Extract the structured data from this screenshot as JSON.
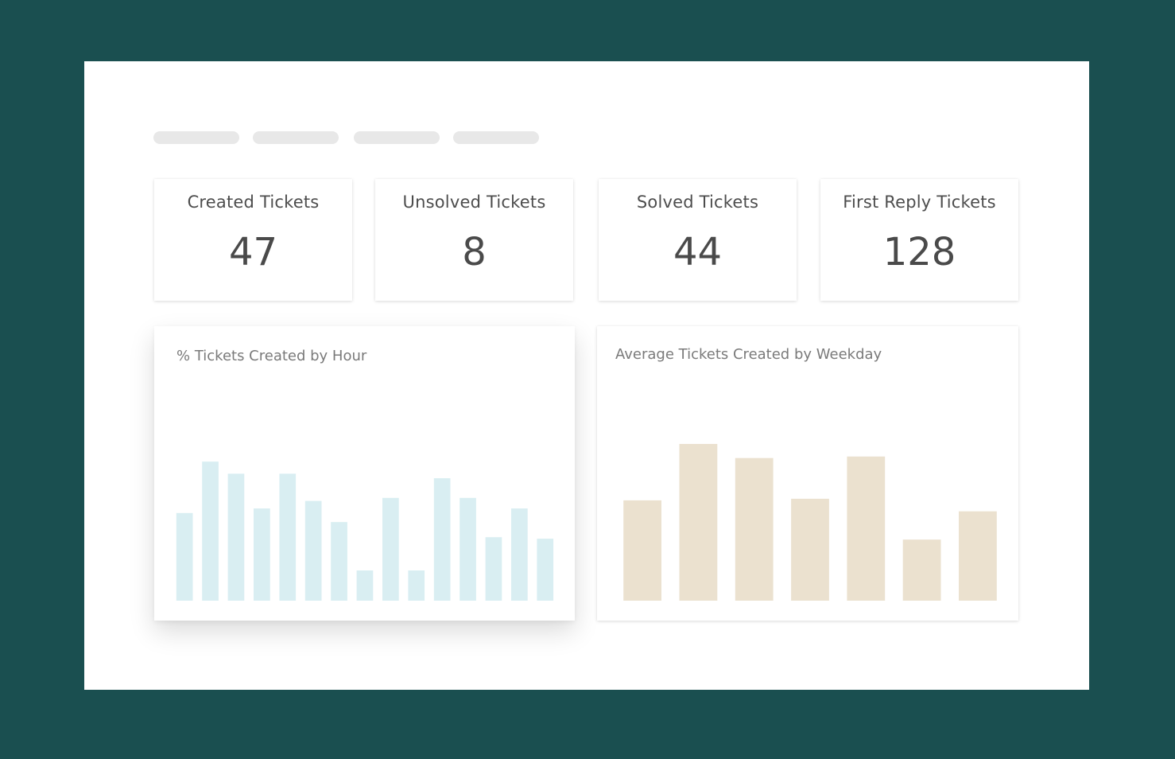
{
  "kpis": [
    {
      "label": "Created Tickets",
      "value": "47"
    },
    {
      "label": "Unsolved Tickets",
      "value": "8"
    },
    {
      "label": "Solved Tickets",
      "value": "44"
    },
    {
      "label": "First Reply Tickets",
      "value": "128"
    }
  ],
  "charts": {
    "hourly": {
      "title": "% Tickets Created by Hour"
    },
    "weekday": {
      "title": "Average Tickets Created by Weekday"
    }
  },
  "colors": {
    "background": "#1a4f50",
    "hourly_bar": "#d9eef2",
    "weekday_bar": "#ebe1cf"
  },
  "chart_data": [
    {
      "type": "bar",
      "title": "% Tickets Created by Hour",
      "values": [
        58,
        92,
        84,
        61,
        84,
        66,
        52,
        20,
        68,
        20,
        81,
        68,
        42,
        61,
        41
      ],
      "ylim": [
        0,
        100
      ],
      "grid": false,
      "legend": "none"
    },
    {
      "type": "bar",
      "title": "Average Tickets Created by Weekday",
      "values": [
        64,
        100,
        91,
        65,
        92,
        39,
        57
      ],
      "ylim": [
        0,
        100
      ],
      "grid": false,
      "legend": "none"
    }
  ]
}
